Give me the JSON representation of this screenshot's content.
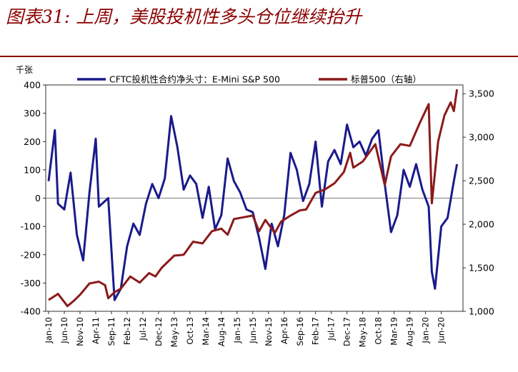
{
  "header": {
    "title": "图表31: 上周，美股投机性多头仓位继续抬升"
  },
  "chart_data": {
    "type": "line",
    "left_axis": {
      "unit_label": "千张",
      "ylim": [
        -400,
        400
      ],
      "ticks": [
        "400",
        "300",
        "200",
        "100",
        "0",
        "-100",
        "-200",
        "-300",
        "-400"
      ]
    },
    "right_axis": {
      "ylim": [
        1000,
        3600
      ],
      "ticks": [
        "3,500",
        "3,000",
        "2,500",
        "2,000",
        "1,500",
        "1,000"
      ]
    },
    "x_ticks": [
      "Jan-10",
      "Jun-10",
      "Nov-10",
      "Apr-11",
      "Sep-11",
      "Feb-12",
      "Jul-12",
      "Dec-12",
      "May-13",
      "Oct-13",
      "Mar-14",
      "Aug-14",
      "Jan-15",
      "Jun-15",
      "Nov-15",
      "Apr-16",
      "Sep-16",
      "Feb-17",
      "Jul-17",
      "Dec-17",
      "May-18",
      "Oct-18",
      "Mar-19",
      "Aug-19",
      "Jan-20",
      "Jun-20"
    ],
    "legend_position": "top",
    "series": [
      {
        "name": "CFTC投机性合约净头寸：E-Mini S&P 500",
        "axis": "left",
        "color": "#1a1a8c",
        "points": [
          [
            "2010-01",
            60
          ],
          [
            "2010-03",
            240
          ],
          [
            "2010-04",
            -20
          ],
          [
            "2010-06",
            -40
          ],
          [
            "2010-08",
            90
          ],
          [
            "2010-10",
            -130
          ],
          [
            "2010-12",
            -220
          ],
          [
            "2011-02",
            20
          ],
          [
            "2011-04",
            210
          ],
          [
            "2011-05",
            -30
          ],
          [
            "2011-07",
            -10
          ],
          [
            "2011-08",
            0
          ],
          [
            "2011-10",
            -360
          ],
          [
            "2011-12",
            -320
          ],
          [
            "2012-02",
            -170
          ],
          [
            "2012-04",
            -90
          ],
          [
            "2012-06",
            -130
          ],
          [
            "2012-08",
            -20
          ],
          [
            "2012-10",
            50
          ],
          [
            "2012-12",
            0
          ],
          [
            "2013-02",
            70
          ],
          [
            "2013-04",
            290
          ],
          [
            "2013-06",
            180
          ],
          [
            "2013-08",
            30
          ],
          [
            "2013-10",
            80
          ],
          [
            "2013-12",
            50
          ],
          [
            "2014-02",
            -70
          ],
          [
            "2014-04",
            40
          ],
          [
            "2014-06",
            -110
          ],
          [
            "2014-08",
            -60
          ],
          [
            "2014-10",
            140
          ],
          [
            "2014-12",
            60
          ],
          [
            "2015-02",
            20
          ],
          [
            "2015-04",
            -40
          ],
          [
            "2015-06",
            -50
          ],
          [
            "2015-08",
            -140
          ],
          [
            "2015-10",
            -250
          ],
          [
            "2015-12",
            -90
          ],
          [
            "2016-02",
            -170
          ],
          [
            "2016-04",
            -60
          ],
          [
            "2016-06",
            160
          ],
          [
            "2016-08",
            100
          ],
          [
            "2016-10",
            -10
          ],
          [
            "2016-12",
            50
          ],
          [
            "2017-02",
            200
          ],
          [
            "2017-04",
            -30
          ],
          [
            "2017-06",
            130
          ],
          [
            "2017-08",
            170
          ],
          [
            "2017-10",
            120
          ],
          [
            "2017-12",
            260
          ],
          [
            "2018-02",
            180
          ],
          [
            "2018-04",
            200
          ],
          [
            "2018-06",
            150
          ],
          [
            "2018-08",
            210
          ],
          [
            "2018-10",
            240
          ],
          [
            "2018-12",
            50
          ],
          [
            "2019-02",
            -120
          ],
          [
            "2019-04",
            -60
          ],
          [
            "2019-06",
            100
          ],
          [
            "2019-08",
            40
          ],
          [
            "2019-10",
            120
          ],
          [
            "2019-12",
            30
          ],
          [
            "2020-02",
            -30
          ],
          [
            "2020-03",
            -260
          ],
          [
            "2020-04",
            -320
          ],
          [
            "2020-06",
            -100
          ],
          [
            "2020-08",
            -70
          ],
          [
            "2020-10",
            60
          ],
          [
            "2020-11",
            120
          ]
        ]
      },
      {
        "name": "标普500（右轴）",
        "axis": "right",
        "color": "#8b1a1a",
        "points": [
          [
            "2010-01",
            1130
          ],
          [
            "2010-04",
            1200
          ],
          [
            "2010-07",
            1060
          ],
          [
            "2010-09",
            1120
          ],
          [
            "2010-11",
            1190
          ],
          [
            "2011-02",
            1320
          ],
          [
            "2011-05",
            1340
          ],
          [
            "2011-07",
            1300
          ],
          [
            "2011-08",
            1150
          ],
          [
            "2011-10",
            1220
          ],
          [
            "2011-12",
            1260
          ],
          [
            "2012-03",
            1400
          ],
          [
            "2012-06",
            1330
          ],
          [
            "2012-09",
            1440
          ],
          [
            "2012-11",
            1400
          ],
          [
            "2013-01",
            1500
          ],
          [
            "2013-05",
            1640
          ],
          [
            "2013-08",
            1650
          ],
          [
            "2013-11",
            1800
          ],
          [
            "2014-02",
            1780
          ],
          [
            "2014-05",
            1920
          ],
          [
            "2014-08",
            1950
          ],
          [
            "2014-10",
            1880
          ],
          [
            "2014-12",
            2060
          ],
          [
            "2015-03",
            2080
          ],
          [
            "2015-06",
            2100
          ],
          [
            "2015-08",
            1920
          ],
          [
            "2015-10",
            2050
          ],
          [
            "2016-01",
            1900
          ],
          [
            "2016-03",
            2030
          ],
          [
            "2016-06",
            2100
          ],
          [
            "2016-09",
            2160
          ],
          [
            "2016-11",
            2170
          ],
          [
            "2017-02",
            2360
          ],
          [
            "2017-05",
            2400
          ],
          [
            "2017-08",
            2470
          ],
          [
            "2017-11",
            2600
          ],
          [
            "2018-01",
            2820
          ],
          [
            "2018-02",
            2650
          ],
          [
            "2018-05",
            2720
          ],
          [
            "2018-09",
            2920
          ],
          [
            "2018-12",
            2450
          ],
          [
            "2019-02",
            2780
          ],
          [
            "2019-05",
            2920
          ],
          [
            "2019-08",
            2900
          ],
          [
            "2019-11",
            3150
          ],
          [
            "2020-02",
            3380
          ],
          [
            "2020-03",
            2240
          ],
          [
            "2020-05",
            2950
          ],
          [
            "2020-07",
            3250
          ],
          [
            "2020-09",
            3400
          ],
          [
            "2020-10",
            3300
          ],
          [
            "2020-11",
            3550
          ]
        ]
      }
    ]
  }
}
